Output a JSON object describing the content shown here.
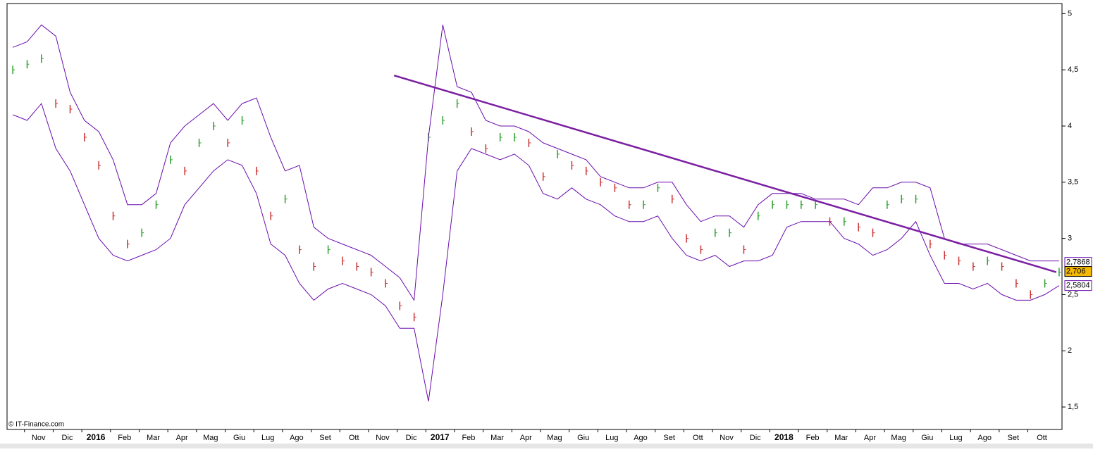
{
  "chart_data": {
    "type": "ohlc-bands",
    "watermark": "© IT-Finance.com",
    "xlim": [
      -1.1,
      35.7
    ],
    "ylim": [
      1.3,
      5.09
    ],
    "xticks": [
      {
        "value": 0,
        "label": "Nov"
      },
      {
        "value": 1,
        "label": "Dic"
      },
      {
        "value": 2,
        "label": "2016"
      },
      {
        "value": 3,
        "label": "Feb"
      },
      {
        "value": 4,
        "label": "Mar"
      },
      {
        "value": 5,
        "label": "Apr"
      },
      {
        "value": 6,
        "label": "Mag"
      },
      {
        "value": 7,
        "label": "Giu"
      },
      {
        "value": 8,
        "label": "Lug"
      },
      {
        "value": 9,
        "label": "Ago"
      },
      {
        "value": 10,
        "label": "Set"
      },
      {
        "value": 11,
        "label": "Ott"
      },
      {
        "value": 12,
        "label": "Nov"
      },
      {
        "value": 13,
        "label": "Dic"
      },
      {
        "value": 14,
        "label": "2017"
      },
      {
        "value": 15,
        "label": "Feb"
      },
      {
        "value": 16,
        "label": "Mar"
      },
      {
        "value": 17,
        "label": "Apr"
      },
      {
        "value": 18,
        "label": "Mag"
      },
      {
        "value": 19,
        "label": "Giu"
      },
      {
        "value": 20,
        "label": "Lug"
      },
      {
        "value": 21,
        "label": "Ago"
      },
      {
        "value": 22,
        "label": "Set"
      },
      {
        "value": 23,
        "label": "Ott"
      },
      {
        "value": 24,
        "label": "Nov"
      },
      {
        "value": 25,
        "label": "Dic"
      },
      {
        "value": 26,
        "label": "2018"
      },
      {
        "value": 27,
        "label": "Feb"
      },
      {
        "value": 28,
        "label": "Mar"
      },
      {
        "value": 29,
        "label": "Apr"
      },
      {
        "value": 30,
        "label": "Mag"
      },
      {
        "value": 31,
        "label": "Giu"
      },
      {
        "value": 32,
        "label": "Lug"
      },
      {
        "value": 33,
        "label": "Ago"
      },
      {
        "value": 34,
        "label": "Set"
      },
      {
        "value": 35,
        "label": "Ott"
      }
    ],
    "yticks": [
      5,
      {
        "value": 4.5,
        "label": "4,5"
      },
      4,
      {
        "value": 3.5,
        "label": "3,5"
      },
      3,
      {
        "value": 2.5,
        "label": "2,5"
      },
      2,
      {
        "value": 1.5,
        "label": "1,5"
      }
    ],
    "x": [
      -0.9,
      -0.4,
      0.1,
      0.6,
      1.1,
      1.6,
      2.1,
      2.6,
      3.1,
      3.6,
      4.1,
      4.6,
      5.1,
      5.6,
      6.1,
      6.6,
      7.1,
      7.6,
      8.1,
      8.6,
      9.1,
      9.6,
      10.1,
      10.6,
      11.1,
      11.6,
      12.1,
      12.6,
      13.1,
      13.6,
      14.1,
      14.6,
      15.1,
      15.6,
      16.1,
      16.6,
      17.1,
      17.6,
      18.1,
      18.6,
      19.1,
      19.6,
      20.1,
      20.6,
      21.1,
      21.6,
      22.1,
      22.6,
      23.1,
      23.6,
      24.1,
      24.6,
      25.1,
      25.6,
      26.1,
      26.6,
      27.1,
      27.6,
      28.1,
      28.6,
      29.1,
      29.6,
      30.1,
      30.6,
      31.1,
      31.6,
      32.1,
      32.6,
      33.1,
      33.6,
      34.1,
      34.6,
      35.1,
      35.6
    ],
    "series": [
      {
        "name": "close",
        "up_color": "#2e9e2e",
        "down_color": "#c83232",
        "values": [
          4.5,
          4.55,
          4.6,
          4.2,
          4.15,
          3.9,
          3.65,
          3.2,
          2.95,
          3.05,
          3.3,
          3.7,
          3.6,
          3.85,
          4.0,
          3.85,
          4.05,
          3.6,
          3.2,
          3.35,
          2.9,
          2.75,
          2.9,
          2.8,
          2.75,
          2.7,
          2.6,
          2.4,
          2.3,
          3.9,
          4.05,
          4.2,
          3.95,
          3.8,
          3.9,
          3.9,
          3.85,
          3.55,
          3.75,
          3.65,
          3.6,
          3.5,
          3.45,
          3.3,
          3.3,
          3.45,
          3.35,
          3.0,
          2.9,
          3.05,
          3.05,
          2.9,
          3.2,
          3.3,
          3.3,
          3.3,
          3.3,
          3.15,
          3.15,
          3.1,
          3.05,
          3.3,
          3.35,
          3.35,
          2.95,
          2.85,
          2.8,
          2.75,
          2.8,
          2.75,
          2.6,
          2.5,
          2.6,
          2.7
        ]
      },
      {
        "name": "upper",
        "color": "#6a0dad",
        "values": [
          4.7,
          4.75,
          4.9,
          4.8,
          4.3,
          4.05,
          3.95,
          3.7,
          3.3,
          3.3,
          3.4,
          3.85,
          4.0,
          4.1,
          4.2,
          4.05,
          4.2,
          4.25,
          3.9,
          3.6,
          3.65,
          3.1,
          3.0,
          2.95,
          2.9,
          2.85,
          2.75,
          2.65,
          2.45,
          3.9,
          4.9,
          4.35,
          4.3,
          4.05,
          4.0,
          4.0,
          3.95,
          3.85,
          3.8,
          3.75,
          3.7,
          3.55,
          3.5,
          3.45,
          3.45,
          3.5,
          3.5,
          3.3,
          3.15,
          3.2,
          3.2,
          3.1,
          3.3,
          3.4,
          3.4,
          3.4,
          3.35,
          3.35,
          3.35,
          3.3,
          3.45,
          3.45,
          3.5,
          3.5,
          3.45,
          3.0,
          2.95,
          2.95,
          2.95,
          2.9,
          2.85,
          2.8,
          2.8,
          2.8
        ]
      },
      {
        "name": "lower",
        "color": "#6a0dad",
        "values": [
          4.1,
          4.05,
          4.2,
          3.8,
          3.6,
          3.3,
          3.0,
          2.85,
          2.8,
          2.85,
          2.9,
          3.0,
          3.3,
          3.45,
          3.6,
          3.7,
          3.65,
          3.4,
          2.95,
          2.85,
          2.6,
          2.45,
          2.55,
          2.6,
          2.55,
          2.5,
          2.4,
          2.2,
          2.2,
          1.55,
          2.5,
          3.6,
          3.8,
          3.75,
          3.7,
          3.75,
          3.65,
          3.4,
          3.35,
          3.45,
          3.35,
          3.3,
          3.2,
          3.15,
          3.15,
          3.2,
          3.0,
          2.85,
          2.8,
          2.85,
          2.75,
          2.8,
          2.8,
          2.85,
          3.1,
          3.15,
          3.15,
          3.15,
          3.0,
          2.95,
          2.85,
          2.9,
          3.0,
          3.15,
          2.85,
          2.6,
          2.6,
          2.55,
          2.6,
          2.5,
          2.45,
          2.45,
          2.5,
          2.58
        ]
      }
    ],
    "trendline": {
      "x": [
        12.4,
        35.5
      ],
      "values": [
        4.45,
        2.7
      ],
      "color": "#7b1fa2"
    },
    "last_labels": [
      {
        "value": 2.7868,
        "label": "2,7868",
        "color": "#6a0dad",
        "bg": "#ffffff"
      },
      {
        "value": 2.706,
        "label": "2,706",
        "color": "#000000",
        "bg": "#f5b800"
      },
      {
        "value": 2.5804,
        "label": "2,5804",
        "color": "#6a0dad",
        "bg": "#ffffff"
      }
    ]
  }
}
